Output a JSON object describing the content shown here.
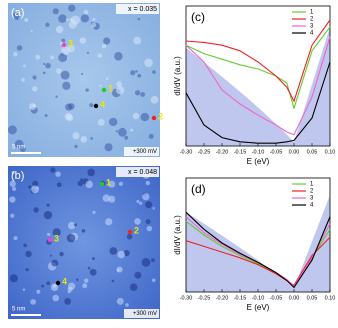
{
  "images": [
    {
      "label": "(a)",
      "doping": "x = 0.035",
      "scale": "5 nm",
      "bias": "+300 mV",
      "points": [
        "1",
        "2",
        "3",
        "4"
      ]
    },
    {
      "label": "(b)",
      "doping": "x = 0.048",
      "scale": "5 nm",
      "bias": "+300 mV",
      "points": [
        "1",
        "2",
        "3",
        "4"
      ]
    }
  ],
  "chart_data": [
    {
      "type": "line",
      "panel": "(c)",
      "x_label": "E (eV)",
      "y_label": "dI/dV (a.u.)",
      "x": [
        -0.3,
        -0.25,
        -0.2,
        -0.15,
        -0.1,
        -0.05,
        -0.02,
        0,
        0.05,
        0.1
      ],
      "xlim": [
        -0.3,
        0.1
      ],
      "ylim": [
        0,
        1
      ],
      "xticks": [
        {
          "value": -0.3,
          "label": "-0.30"
        },
        {
          "value": -0.25,
          "label": "-0.25"
        },
        {
          "value": -0.2,
          "label": "-0.20"
        },
        {
          "value": -0.15,
          "label": "-0.15"
        },
        {
          "value": -0.1,
          "label": "-0.10"
        },
        {
          "value": -0.05,
          "label": "-0.05"
        },
        {
          "value": 0,
          "label": "0.00"
        },
        {
          "value": 0.05,
          "label": "0.05"
        },
        {
          "value": 0.1,
          "label": "0.10"
        }
      ],
      "legend": "upper right",
      "series": [
        {
          "name": "1",
          "color": "#66cc33",
          "values": [
            0.72,
            0.66,
            0.62,
            0.58,
            0.55,
            0.5,
            0.45,
            0.27,
            0.68,
            0.85
          ]
        },
        {
          "name": "2",
          "color": "#ee2222",
          "values": [
            0.75,
            0.74,
            0.72,
            0.68,
            0.6,
            0.5,
            0.42,
            0.32,
            0.72,
            0.9
          ]
        },
        {
          "name": "3",
          "color": "#ee66cc",
          "values": [
            0.72,
            0.6,
            0.4,
            0.3,
            0.22,
            0.15,
            0.1,
            0.08,
            0.35,
            0.78
          ]
        },
        {
          "name": "4",
          "color": "#000000",
          "values": [
            0.38,
            0.15,
            0.06,
            0.03,
            0.02,
            0.02,
            0.03,
            0.04,
            0.2,
            0.6
          ]
        }
      ]
    },
    {
      "type": "line",
      "panel": "(d)",
      "x_label": "E (eV)",
      "y_label": "dI/dV (a.u.)",
      "x": [
        -0.3,
        -0.25,
        -0.2,
        -0.15,
        -0.1,
        -0.05,
        -0.02,
        0,
        0.05,
        0.1
      ],
      "xlim": [
        -0.3,
        0.1
      ],
      "ylim": [
        0,
        1
      ],
      "xticks": [
        {
          "value": -0.3,
          "label": "-0.30"
        },
        {
          "value": -0.25,
          "label": "-0.25"
        },
        {
          "value": -0.2,
          "label": "-0.20"
        },
        {
          "value": -0.15,
          "label": "-0.15"
        },
        {
          "value": -0.1,
          "label": "-0.10"
        },
        {
          "value": -0.05,
          "label": "-0.05"
        },
        {
          "value": 0,
          "label": "0.00"
        },
        {
          "value": 0.05,
          "label": "0.05"
        },
        {
          "value": 0.1,
          "label": "0.10"
        }
      ],
      "legend": "upper right",
      "series": [
        {
          "name": "1",
          "color": "#66cc33",
          "values": [
            0.62,
            0.5,
            0.4,
            0.32,
            0.25,
            0.16,
            0.1,
            0.05,
            0.3,
            0.55
          ]
        },
        {
          "name": "2",
          "color": "#ee2222",
          "values": [
            0.45,
            0.4,
            0.35,
            0.3,
            0.24,
            0.16,
            0.1,
            0.06,
            0.32,
            0.48
          ]
        },
        {
          "name": "3",
          "color": "#ee66cc",
          "values": [
            0.66,
            0.52,
            0.42,
            0.33,
            0.26,
            0.17,
            0.11,
            0.05,
            0.3,
            0.6
          ]
        },
        {
          "name": "4",
          "color": "#000000",
          "values": [
            0.7,
            0.55,
            0.43,
            0.34,
            0.26,
            0.17,
            0.1,
            0.04,
            0.28,
            0.66
          ]
        }
      ]
    }
  ]
}
